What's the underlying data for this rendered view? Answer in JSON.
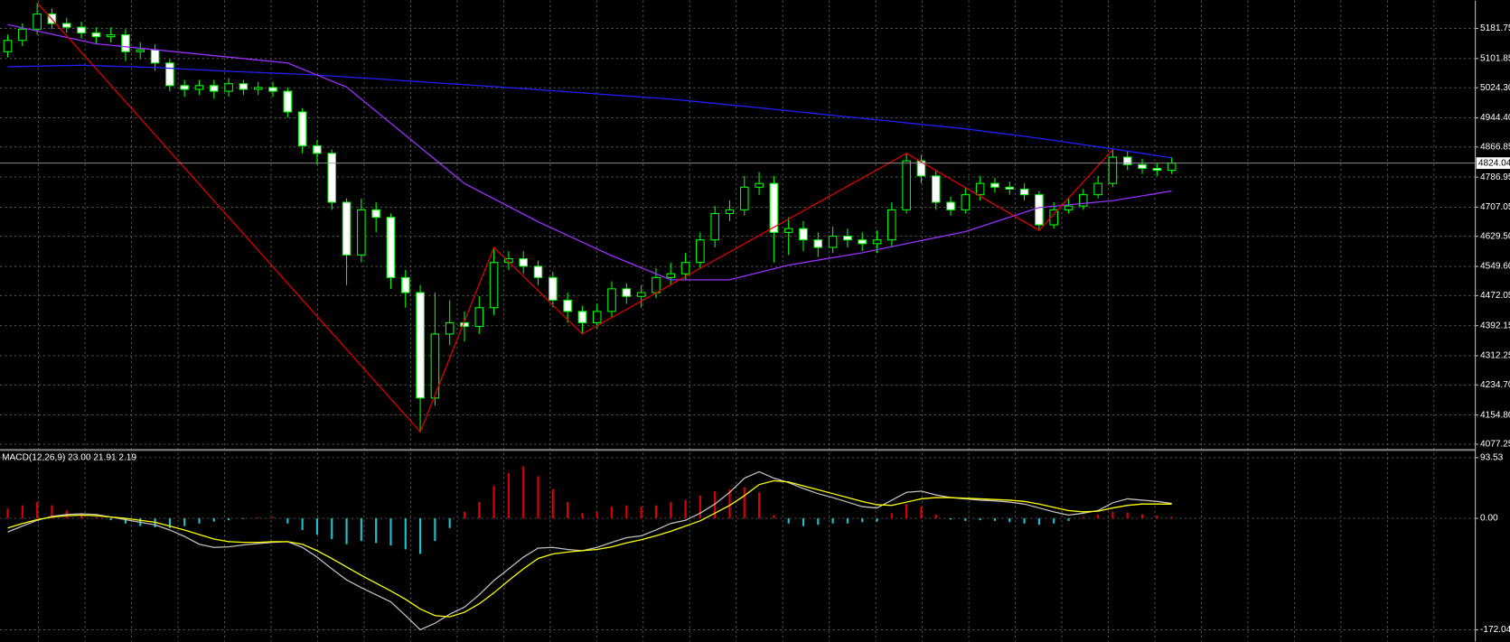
{
  "chart_data": [
    {
      "type": "candlestick",
      "open": [
        5120,
        5150,
        5180,
        5220,
        5195,
        5185,
        5170,
        5160,
        5165,
        5120,
        5125,
        5090,
        5030,
        5020,
        5030,
        5015,
        5035,
        5020,
        5025,
        5015,
        4960,
        4870,
        4850,
        4720,
        4580,
        4700,
        4680,
        4520,
        4480,
        4200,
        4370,
        4400,
        4390,
        4440,
        4560,
        4570,
        4550,
        4520,
        4460,
        4430,
        4400,
        4430,
        4490,
        4470,
        4480,
        4520,
        4530,
        4560,
        4620,
        4690,
        4700,
        4760,
        4770,
        4640,
        4650,
        4620,
        4600,
        4630,
        4620,
        4610,
        4620,
        4700,
        4830,
        4790,
        4720,
        4700,
        4740,
        4770,
        4760,
        4755,
        4740,
        4660,
        4700,
        4710,
        4740,
        4770,
        4840,
        4820,
        4810,
        4805
      ],
      "high": [
        5165,
        5195,
        5250,
        5235,
        5210,
        5200,
        5185,
        5185,
        5180,
        5145,
        5140,
        5100,
        5045,
        5045,
        5045,
        5050,
        5045,
        5040,
        5040,
        5025,
        4970,
        4885,
        4860,
        4730,
        4730,
        4720,
        4690,
        4540,
        4500,
        4480,
        4460,
        4430,
        4470,
        4600,
        4590,
        4590,
        4565,
        4535,
        4480,
        4445,
        4450,
        4510,
        4505,
        4500,
        4545,
        4560,
        4585,
        4640,
        4710,
        4725,
        4790,
        4800,
        4790,
        4680,
        4670,
        4640,
        4655,
        4650,
        4640,
        4645,
        4720,
        4850,
        4845,
        4805,
        4735,
        4760,
        4790,
        4785,
        4775,
        4770,
        4750,
        4720,
        4730,
        4755,
        4790,
        4860,
        4855,
        4835,
        4825,
        4840
      ],
      "low": [
        5105,
        5135,
        5165,
        5180,
        5170,
        5155,
        5140,
        5145,
        5095,
        5100,
        5070,
        5015,
        5000,
        5005,
        4995,
        5000,
        5005,
        5005,
        5000,
        4945,
        4850,
        4820,
        4700,
        4500,
        4560,
        4640,
        4490,
        4440,
        4110,
        4180,
        4340,
        4350,
        4370,
        4420,
        4540,
        4530,
        4500,
        4440,
        4400,
        4370,
        4385,
        4415,
        4450,
        4440,
        4465,
        4500,
        4515,
        4545,
        4600,
        4670,
        4685,
        4740,
        4560,
        4580,
        4590,
        4575,
        4585,
        4600,
        4590,
        4585,
        4600,
        4690,
        4770,
        4700,
        4685,
        4690,
        4725,
        4745,
        4740,
        4725,
        4645,
        4650,
        4690,
        4700,
        4730,
        4760,
        4805,
        4795,
        4790,
        4795
      ],
      "close": [
        5150,
        5180,
        5220,
        5195,
        5185,
        5170,
        5160,
        5165,
        5120,
        5125,
        5090,
        5030,
        5020,
        5030,
        5015,
        5035,
        5020,
        5025,
        5015,
        4960,
        4870,
        4850,
        4720,
        4580,
        4700,
        4680,
        4520,
        4480,
        4200,
        4370,
        4400,
        4390,
        4440,
        4560,
        4570,
        4550,
        4520,
        4460,
        4430,
        4400,
        4430,
        4490,
        4470,
        4480,
        4520,
        4530,
        4560,
        4620,
        4690,
        4700,
        4760,
        4770,
        4640,
        4650,
        4620,
        4600,
        4630,
        4620,
        4610,
        4620,
        4700,
        4830,
        4790,
        4720,
        4700,
        4740,
        4770,
        4760,
        4755,
        4740,
        4660,
        4700,
        4710,
        4740,
        4770,
        4840,
        4820,
        4810,
        4805,
        4824.04
      ],
      "up_color": "#000000",
      "down_color": "#ffffff",
      "wick_color": "#00ff00",
      "series": [
        {
          "color": "#2020ff",
          "x": [
            0,
            5,
            10,
            15,
            20,
            25,
            30,
            35,
            40,
            45,
            50,
            55,
            60,
            65,
            70,
            75,
            79
          ],
          "values": [
            5080,
            5084,
            5078,
            5068,
            5060,
            5048,
            5035,
            5022,
            5008,
            4994,
            4975,
            4955,
            4935,
            4915,
            4890,
            4862,
            4838
          ]
        },
        {
          "color": "#9b30ff",
          "x": [
            0,
            6,
            19,
            23,
            27,
            31,
            36,
            41,
            45,
            49,
            53,
            58,
            65,
            70,
            75,
            79
          ],
          "values": [
            5192,
            5141,
            5090,
            5026,
            4898,
            4770,
            4668,
            4578,
            4514,
            4514,
            4553,
            4586,
            4642,
            4706,
            4724,
            4750
          ]
        },
        {
          "color": "#e00000",
          "x": [
            2,
            28,
            33,
            39,
            61,
            70,
            75
          ],
          "values": [
            5250,
            4110,
            4600,
            4370,
            4850,
            4645,
            4860
          ]
        }
      ],
      "current_price": 4824.04,
      "ylim": [
        4064.5,
        5255.9
      ],
      "yticks": [
        5181.75,
        5101.85,
        {
          "value": 5024.3,
          "label": "5024.30"
        },
        {
          "value": 4944.4,
          "label": "4944.40"
        },
        4866.85,
        4786.95,
        4707.05,
        {
          "value": 4629.5,
          "label": "4629.50"
        },
        {
          "value": 4549.6,
          "label": "4549.60"
        },
        4472.05,
        4392.15,
        4312.25,
        {
          "value": 4234.7,
          "label": "4234.70"
        },
        {
          "value": 4154.8,
          "label": "4154.80"
        },
        4077.25
      ],
      "grid": true
    },
    {
      "type": "macd",
      "title": "MACD(12,26,9) 23.00 21.91 2.19",
      "histogram": [
        15,
        20,
        25,
        20,
        12,
        6,
        2,
        -3,
        -8,
        -12,
        -14,
        -15,
        -12,
        -8,
        -5,
        -3,
        -1,
        1,
        2,
        -8,
        -18,
        -25,
        -32,
        -40,
        -35,
        -38,
        -42,
        -48,
        -55,
        -35,
        -15,
        10,
        25,
        50,
        70,
        80,
        65,
        45,
        25,
        8,
        10,
        18,
        20,
        18,
        20,
        25,
        28,
        35,
        42,
        45,
        48,
        40,
        5,
        -8,
        -12,
        -10,
        -8,
        -8,
        -6,
        -5,
        8,
        22,
        18,
        6,
        -2,
        -4,
        -3,
        -4,
        -6,
        -8,
        -10,
        -8,
        -4,
        2,
        6,
        10,
        9,
        6,
        4,
        2.19
      ],
      "positive_color": "#e00000",
      "negative_color": "#20c0d0",
      "series": [
        {
          "color": "#c0c0c0",
          "values": [
            -21,
            -12,
            -3,
            3,
            6,
            7,
            6,
            2,
            -2,
            -6,
            -10,
            -18,
            -28,
            -40,
            -45,
            -44,
            -41,
            -39,
            -37,
            -36,
            -45,
            -60,
            -78,
            -95,
            -107,
            -118,
            -129,
            -150,
            -172,
            -162,
            -148,
            -137,
            -118,
            -96,
            -78,
            -60,
            -46,
            -45,
            -48,
            -50,
            -45,
            -37,
            -30,
            -27,
            -18,
            -8,
            -3,
            8,
            22,
            40,
            62,
            72,
            62,
            55,
            46,
            38,
            32,
            25,
            18,
            16,
            28,
            40,
            42,
            36,
            32,
            30,
            28,
            27,
            25,
            22,
            16,
            10,
            5,
            8,
            12,
            24,
            30,
            28,
            26,
            23
          ]
        },
        {
          "color": "#ffff00",
          "values": [
            -15,
            -8,
            -2,
            2,
            4,
            5,
            4,
            2,
            0,
            -3,
            -6,
            -12,
            -18,
            -25,
            -32,
            -36,
            -37,
            -37,
            -36,
            -36,
            -40,
            -50,
            -62,
            -75,
            -88,
            -100,
            -112,
            -125,
            -140,
            -150,
            -152,
            -145,
            -132,
            -115,
            -96,
            -78,
            -62,
            -55,
            -52,
            -50,
            -48,
            -44,
            -38,
            -33,
            -27,
            -20,
            -12,
            -4,
            8,
            20,
            35,
            52,
            58,
            56,
            50,
            44,
            38,
            32,
            26,
            21,
            20,
            25,
            30,
            32,
            32,
            31,
            30,
            29,
            28,
            26,
            22,
            17,
            12,
            10,
            11,
            16,
            20,
            22,
            22,
            21.91
          ]
        }
      ],
      "ylim": [
        -190,
        104
      ],
      "yticks": [
        93.53,
        {
          "value": 0,
          "label": "0.00"
        },
        -172.04
      ],
      "grid": true
    }
  ]
}
